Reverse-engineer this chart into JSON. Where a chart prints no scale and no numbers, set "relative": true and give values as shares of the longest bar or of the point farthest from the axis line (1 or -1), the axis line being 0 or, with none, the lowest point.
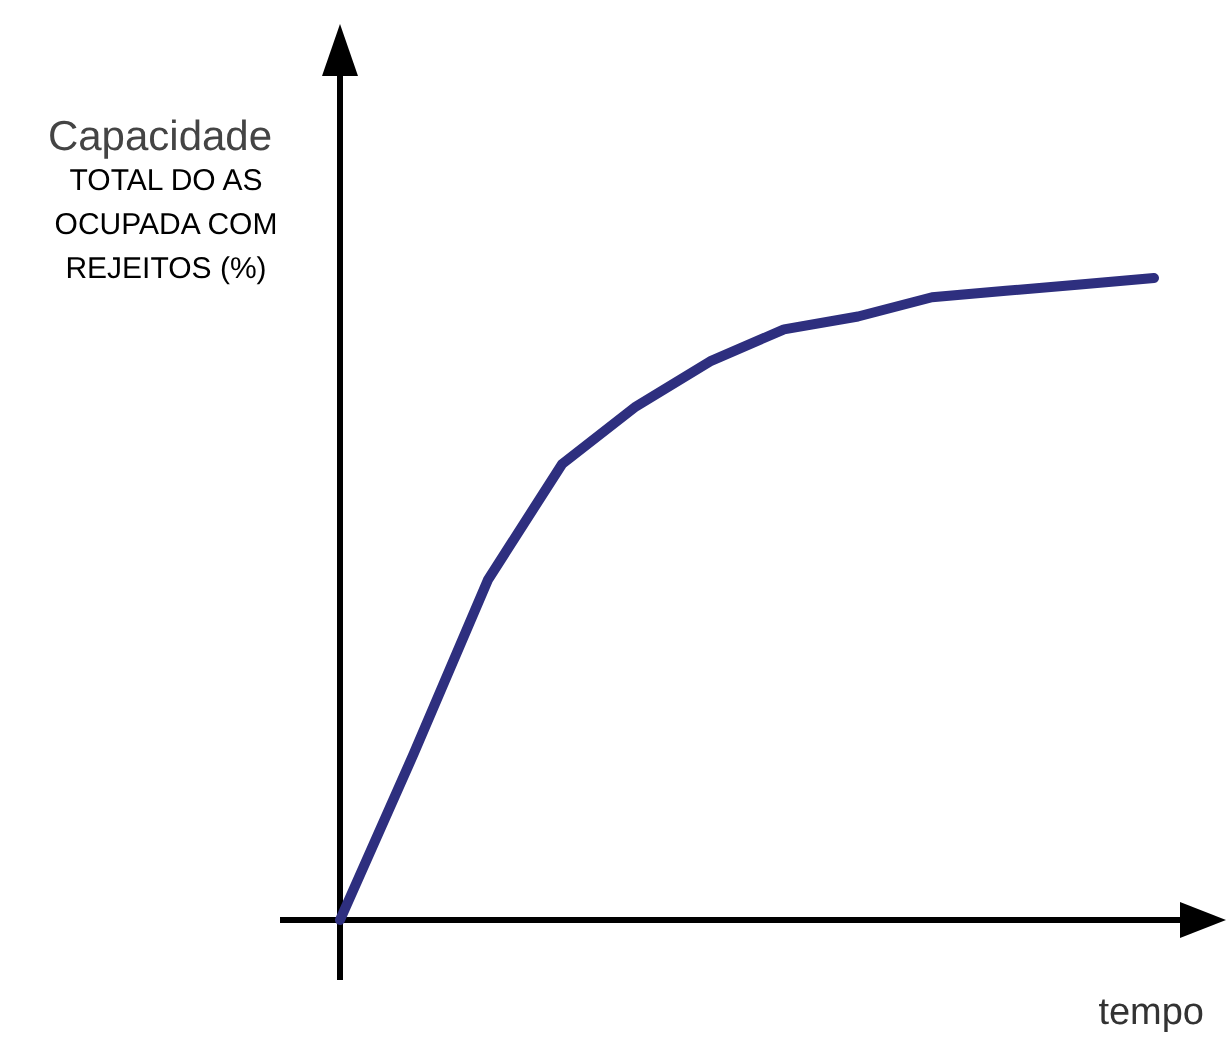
{
  "chart_data": {
    "type": "line",
    "relative": true,
    "xlabel": "tempo",
    "ylabel": "Capacidade TOTAL DO AS OCUPADA COM REJEITOS (%)",
    "categories": [
      null,
      null,
      null,
      null,
      null,
      null,
      null,
      null,
      null,
      null,
      null,
      null
    ],
    "series": [
      {
        "color": "#2e2f7f",
        "values": [
          0,
          0.26,
          0.53,
          0.71,
          0.8,
          0.87,
          0.92,
          0.94,
          0.97,
          0.98,
          0.99,
          1
        ]
      }
    ],
    "marker": "none",
    "line_style": "solid"
  }
}
